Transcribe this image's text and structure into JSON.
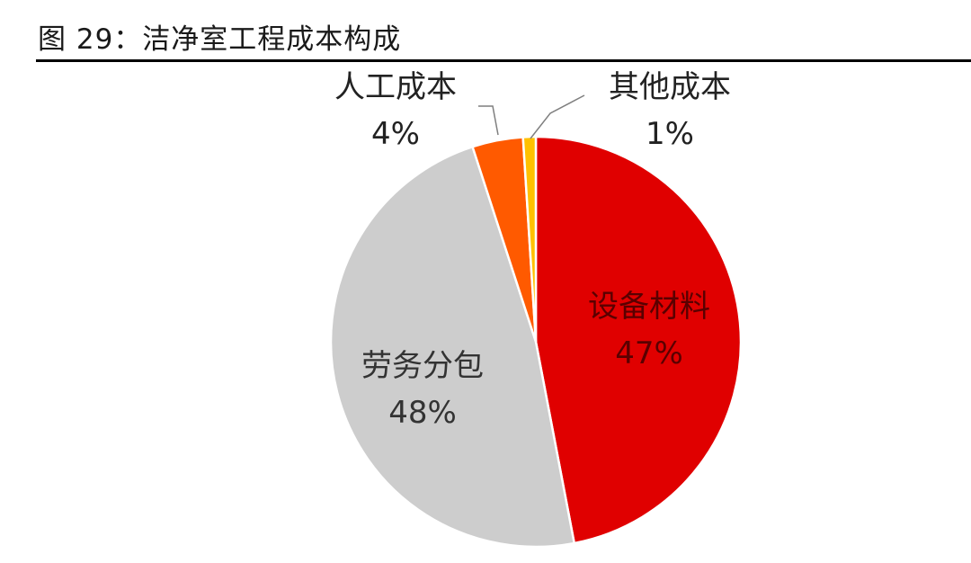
{
  "title": "图 29：洁净室工程成本构成",
  "colors": {
    "设备材料": "#e00000",
    "劳务分包": "#cdcdcd",
    "人工成本": "#ff5a00",
    "其他成本": "#ffc000"
  },
  "chart_data": {
    "type": "pie",
    "title": "图 29：洁净室工程成本构成",
    "slices": [
      {
        "name": "设备材料",
        "value": 47,
        "label": "47%"
      },
      {
        "name": "劳务分包",
        "value": 48,
        "label": "48%"
      },
      {
        "name": "人工成本",
        "value": 4,
        "label": "4%"
      },
      {
        "name": "其他成本",
        "value": 1,
        "label": "1%"
      }
    ]
  }
}
